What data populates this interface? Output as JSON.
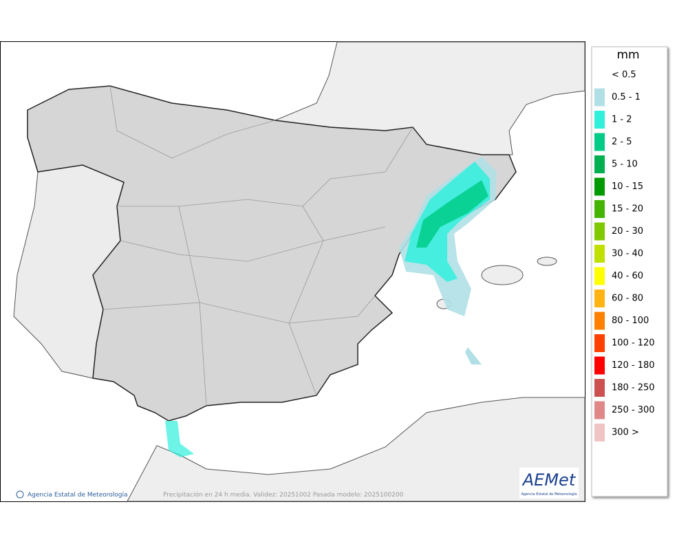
{
  "map": {
    "credit": "Agencia Estatal de Meteorología",
    "caption": "Precipitación en 24 h media. Validez: 20251002 Pasada modelo: 2025100200",
    "logo": {
      "text": "AEMet",
      "subtitle": "Agencia Estatal de Meteorología"
    }
  },
  "legend": {
    "title": "mm",
    "items": [
      {
        "label": "< 0.5"
      },
      {
        "label": "0.5 - 1",
        "color": "#b0e0e6"
      },
      {
        "label": "1 - 2",
        "color": "#30f0dc"
      },
      {
        "label": "2 - 5",
        "color": "#00cc88"
      },
      {
        "label": "5 - 10",
        "color": "#00b050"
      },
      {
        "label": "10 - 15",
        "color": "#009a00"
      },
      {
        "label": "15 - 20",
        "color": "#44b400"
      },
      {
        "label": "20 - 30",
        "color": "#80c800"
      },
      {
        "label": "30 - 40",
        "color": "#c0e000"
      },
      {
        "label": "40 - 60",
        "color": "#ffff00"
      },
      {
        "label": "60 - 80",
        "color": "#ffb414"
      },
      {
        "label": "80 - 100",
        "color": "#ff8000"
      },
      {
        "label": "100 - 120",
        "color": "#ff4000"
      },
      {
        "label": "120 - 180",
        "color": "#ff0000"
      },
      {
        "label": "180 - 250",
        "color": "#cc5050"
      },
      {
        "label": "250 - 300",
        "color": "#e08888"
      },
      {
        "label": "300 >",
        "color": "#f0c4c4"
      }
    ]
  }
}
